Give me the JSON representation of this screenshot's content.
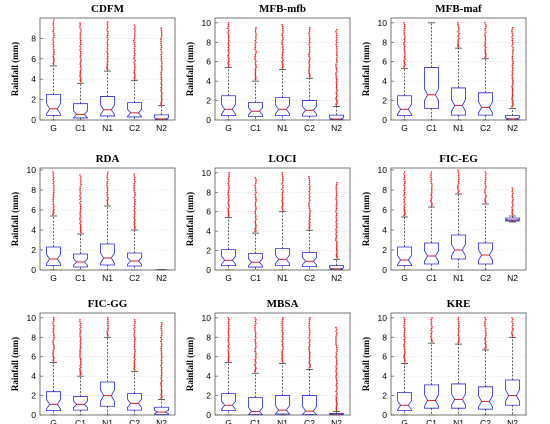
{
  "chart_data": [
    {
      "type": "box",
      "title": "CDFM",
      "ylabel": "Rainfall (mm)",
      "categories": [
        "G",
        "C1",
        "N1",
        "C2",
        "N2"
      ],
      "ylim": [
        0,
        10
      ],
      "yticks": [
        0,
        2,
        4,
        6,
        8
      ],
      "boxes": [
        {
          "category": "G",
          "whisker_low": 0,
          "q1": 0.45,
          "median": 1.1,
          "q3": 2.5,
          "whisker_high": 5.3,
          "outliers_to": 9.8
        },
        {
          "category": "C1",
          "whisker_low": 0,
          "q1": 0.2,
          "median": 0.55,
          "q3": 1.6,
          "whisker_high": 3.6,
          "outliers_to": 9.5
        },
        {
          "category": "N1",
          "whisker_low": 0,
          "q1": 0.4,
          "median": 1.0,
          "q3": 2.3,
          "whisker_high": 4.8,
          "outliers_to": 9.6
        },
        {
          "category": "C2",
          "whisker_low": 0,
          "q1": 0.3,
          "median": 0.7,
          "q3": 1.7,
          "whisker_high": 3.9,
          "outliers_to": 9.3
        },
        {
          "category": "N2",
          "whisker_low": 0,
          "q1": 0.02,
          "median": 0.1,
          "q3": 0.5,
          "whisker_high": 1.4,
          "outliers_to": 9.0
        }
      ]
    },
    {
      "type": "box",
      "title": "MFB-mfb",
      "ylabel": "Rainfall (mm)",
      "categories": [
        "G",
        "C1",
        "N1",
        "C2",
        "N2"
      ],
      "ylim": [
        0,
        10.5
      ],
      "yticks": [
        0,
        2,
        4,
        6,
        8,
        10
      ],
      "boxes": [
        {
          "category": "G",
          "whisker_low": 0,
          "q1": 0.45,
          "median": 1.1,
          "q3": 2.5,
          "whisker_high": 5.4,
          "outliers_to": 10
        },
        {
          "category": "C1",
          "whisker_low": 0,
          "q1": 0.35,
          "median": 0.9,
          "q3": 1.8,
          "whisker_high": 4.0,
          "outliers_to": 9.5
        },
        {
          "category": "N1",
          "whisker_low": 0,
          "q1": 0.45,
          "median": 1.1,
          "q3": 2.3,
          "whisker_high": 5.2,
          "outliers_to": 9.8
        },
        {
          "category": "C2",
          "whisker_low": 0,
          "q1": 0.4,
          "median": 1.0,
          "q3": 2.0,
          "whisker_high": 4.3,
          "outliers_to": 9.5
        },
        {
          "category": "N2",
          "whisker_low": 0,
          "q1": 0.02,
          "median": 0.1,
          "q3": 0.5,
          "whisker_high": 1.4,
          "outliers_to": 9.3
        }
      ]
    },
    {
      "type": "box",
      "title": "MFB-maf",
      "ylabel": "Rainfall (mm)",
      "categories": [
        "G",
        "C1",
        "N1",
        "C2",
        "N2"
      ],
      "ylim": [
        0,
        10.5
      ],
      "yticks": [
        0,
        2,
        4,
        6,
        8,
        10
      ],
      "boxes": [
        {
          "category": "G",
          "whisker_low": 0,
          "q1": 0.45,
          "median": 1.1,
          "q3": 2.5,
          "whisker_high": 5.3,
          "outliers_to": 10
        },
        {
          "category": "C1",
          "whisker_low": 0,
          "q1": 1.2,
          "median": 2.6,
          "q3": 5.4,
          "whisker_high": 10,
          "outliers_to": 10
        },
        {
          "category": "N1",
          "whisker_low": 0,
          "q1": 0.5,
          "median": 1.5,
          "q3": 3.3,
          "whisker_high": 7.4,
          "outliers_to": 10
        },
        {
          "category": "C2",
          "whisker_low": 0,
          "q1": 0.5,
          "median": 1.3,
          "q3": 2.8,
          "whisker_high": 6.3,
          "outliers_to": 10
        },
        {
          "category": "N2",
          "whisker_low": 0,
          "q1": 0.02,
          "median": 0.12,
          "q3": 0.45,
          "whisker_high": 1.2,
          "outliers_to": 9.5
        }
      ]
    },
    {
      "type": "box",
      "title": "RDA",
      "ylabel": "Rainfall (mm)",
      "categories": [
        "G",
        "C1",
        "N1",
        "C2",
        "N2"
      ],
      "ylim": [
        0,
        10.2
      ],
      "yticks": [
        0,
        2,
        4,
        6,
        8,
        10
      ],
      "boxes": [
        {
          "category": "G",
          "whisker_low": 0,
          "q1": 0.45,
          "median": 1.1,
          "q3": 2.3,
          "whisker_high": 5.4,
          "outliers_to": 9.8
        },
        {
          "category": "C1",
          "whisker_low": 0,
          "q1": 0.3,
          "median": 0.8,
          "q3": 1.6,
          "whisker_high": 3.6,
          "outliers_to": 9.5
        },
        {
          "category": "N1",
          "whisker_low": 0,
          "q1": 0.5,
          "median": 1.2,
          "q3": 2.6,
          "whisker_high": 6.4,
          "outliers_to": 9.8
        },
        {
          "category": "C2",
          "whisker_low": 0,
          "q1": 0.4,
          "median": 0.9,
          "q3": 1.7,
          "whisker_high": 4.0,
          "outliers_to": 9.6
        },
        {
          "category": "N2",
          "whisker_low": 0,
          "q1": 0,
          "median": 0,
          "q3": 0.02,
          "whisker_high": 0.05,
          "outliers_to": 0
        }
      ]
    },
    {
      "type": "box",
      "title": "LOCI",
      "ylabel": "Rainfall (mm)",
      "categories": [
        "G",
        "C1",
        "N1",
        "C2",
        "N2"
      ],
      "ylim": [
        0,
        10.5
      ],
      "yticks": [
        0,
        2,
        4,
        6,
        8,
        10
      ],
      "boxes": [
        {
          "category": "G",
          "whisker_low": 0,
          "q1": 0.45,
          "median": 1.0,
          "q3": 2.1,
          "whisker_high": 5.4,
          "outliers_to": 10
        },
        {
          "category": "C1",
          "whisker_low": 0,
          "q1": 0.3,
          "median": 0.8,
          "q3": 1.7,
          "whisker_high": 3.8,
          "outliers_to": 9.5
        },
        {
          "category": "N1",
          "whisker_low": 0,
          "q1": 0.45,
          "median": 1.1,
          "q3": 2.2,
          "whisker_high": 6.0,
          "outliers_to": 10
        },
        {
          "category": "C2",
          "whisker_low": 0,
          "q1": 0.35,
          "median": 0.9,
          "q3": 1.8,
          "whisker_high": 4.1,
          "outliers_to": 9.6
        },
        {
          "category": "N2",
          "whisker_low": 0,
          "q1": 0.02,
          "median": 0.12,
          "q3": 0.45,
          "whisker_high": 1.1,
          "outliers_to": 9.0
        }
      ]
    },
    {
      "type": "box",
      "title": "FIC-EG",
      "ylabel": "Rainfall (mm)",
      "categories": [
        "G",
        "C1",
        "N1",
        "C2",
        "N2"
      ],
      "ylim": [
        0,
        10.2
      ],
      "yticks": [
        0,
        2,
        4,
        6,
        8,
        10
      ],
      "boxes": [
        {
          "category": "G",
          "whisker_low": 0,
          "q1": 0.45,
          "median": 1.0,
          "q3": 2.3,
          "whisker_high": 5.3,
          "outliers_to": 9.8
        },
        {
          "category": "C1",
          "whisker_low": 0,
          "q1": 0.6,
          "median": 1.4,
          "q3": 2.7,
          "whisker_high": 6.3,
          "outliers_to": 9.8
        },
        {
          "category": "N1",
          "whisker_low": 0,
          "q1": 1.1,
          "median": 2.0,
          "q3": 3.5,
          "whisker_high": 7.6,
          "outliers_to": 10
        },
        {
          "category": "C2",
          "whisker_low": 0,
          "q1": 0.6,
          "median": 1.5,
          "q3": 2.7,
          "whisker_high": 6.6,
          "outliers_to": 9.8
        },
        {
          "category": "N2",
          "whisker_low": 4.8,
          "q1": 4.9,
          "median": 5.0,
          "q3": 5.2,
          "whisker_high": 5.4,
          "outliers_to": 8.2
        }
      ]
    },
    {
      "type": "box",
      "title": "FIC-GG",
      "ylabel": "Rainfall (mm)",
      "categories": [
        "G",
        "C1",
        "N1",
        "C2",
        "N2"
      ],
      "ylim": [
        0,
        10.5
      ],
      "yticks": [
        0,
        2,
        4,
        6,
        8,
        10
      ],
      "boxes": [
        {
          "category": "G",
          "whisker_low": 0,
          "q1": 0.45,
          "median": 1.1,
          "q3": 2.4,
          "whisker_high": 5.4,
          "outliers_to": 10
        },
        {
          "category": "C1",
          "whisker_low": 0,
          "q1": 0.5,
          "median": 1.1,
          "q3": 1.9,
          "whisker_high": 4.0,
          "outliers_to": 9.8
        },
        {
          "category": "N1",
          "whisker_low": 0,
          "q1": 0.9,
          "median": 2.0,
          "q3": 3.4,
          "whisker_high": 8.0,
          "outliers_to": 10
        },
        {
          "category": "C2",
          "whisker_low": 0,
          "q1": 0.5,
          "median": 1.2,
          "q3": 2.2,
          "whisker_high": 4.5,
          "outliers_to": 9.8
        },
        {
          "category": "N2",
          "whisker_low": 0,
          "q1": 0.05,
          "median": 0.3,
          "q3": 0.8,
          "whisker_high": 1.6,
          "outliers_to": 9.5
        }
      ]
    },
    {
      "type": "box",
      "title": "MBSA",
      "ylabel": "Rainfall (mm)",
      "categories": [
        "G",
        "C1",
        "N1",
        "C2",
        "N2"
      ],
      "ylim": [
        0,
        10.5
      ],
      "yticks": [
        0,
        2,
        4,
        6,
        8,
        10
      ],
      "boxes": [
        {
          "category": "G",
          "whisker_low": 0,
          "q1": 0.45,
          "median": 1.0,
          "q3": 2.2,
          "whisker_high": 5.4,
          "outliers_to": 10
        },
        {
          "category": "C1",
          "whisker_low": 0,
          "q1": 0.05,
          "median": 0.35,
          "q3": 1.8,
          "whisker_high": 4.3,
          "outliers_to": 10
        },
        {
          "category": "N1",
          "whisker_low": 0,
          "q1": 0.1,
          "median": 0.5,
          "q3": 2.0,
          "whisker_high": 5.3,
          "outliers_to": 10
        },
        {
          "category": "C2",
          "whisker_low": 0,
          "q1": 0.05,
          "median": 0.4,
          "q3": 2.0,
          "whisker_high": 4.7,
          "outliers_to": 10
        },
        {
          "category": "N2",
          "whisker_low": 0,
          "q1": 0.01,
          "median": 0.05,
          "q3": 0.15,
          "whisker_high": 0.35,
          "outliers_to": 9.0
        }
      ]
    },
    {
      "type": "box",
      "title": "KRE",
      "ylabel": "Rainfall (mm)",
      "categories": [
        "G",
        "C1",
        "N1",
        "C2",
        "N2"
      ],
      "ylim": [
        0,
        10.5
      ],
      "yticks": [
        0,
        2,
        4,
        6,
        8,
        10
      ],
      "boxes": [
        {
          "category": "G",
          "whisker_low": 0,
          "q1": 0.45,
          "median": 1.0,
          "q3": 2.3,
          "whisker_high": 5.3,
          "outliers_to": 10
        },
        {
          "category": "C1",
          "whisker_low": 0,
          "q1": 0.7,
          "median": 1.5,
          "q3": 3.1,
          "whisker_high": 7.4,
          "outliers_to": 10
        },
        {
          "category": "N1",
          "whisker_low": 0,
          "q1": 0.7,
          "median": 1.6,
          "q3": 3.2,
          "whisker_high": 7.3,
          "outliers_to": 10
        },
        {
          "category": "C2",
          "whisker_low": 0,
          "q1": 0.6,
          "median": 1.4,
          "q3": 2.9,
          "whisker_high": 6.7,
          "outliers_to": 10
        },
        {
          "category": "N2",
          "whisker_low": 0,
          "q1": 1.0,
          "median": 2.0,
          "q3": 3.6,
          "whisker_high": 8.0,
          "outliers_to": 10
        }
      ]
    }
  ],
  "colors": {
    "box": "#2b2bd6",
    "median": "#d62020",
    "whisker": "#222222",
    "outlier": "#ee1c1c",
    "grid": "#dddddd",
    "frame": "#555555"
  }
}
